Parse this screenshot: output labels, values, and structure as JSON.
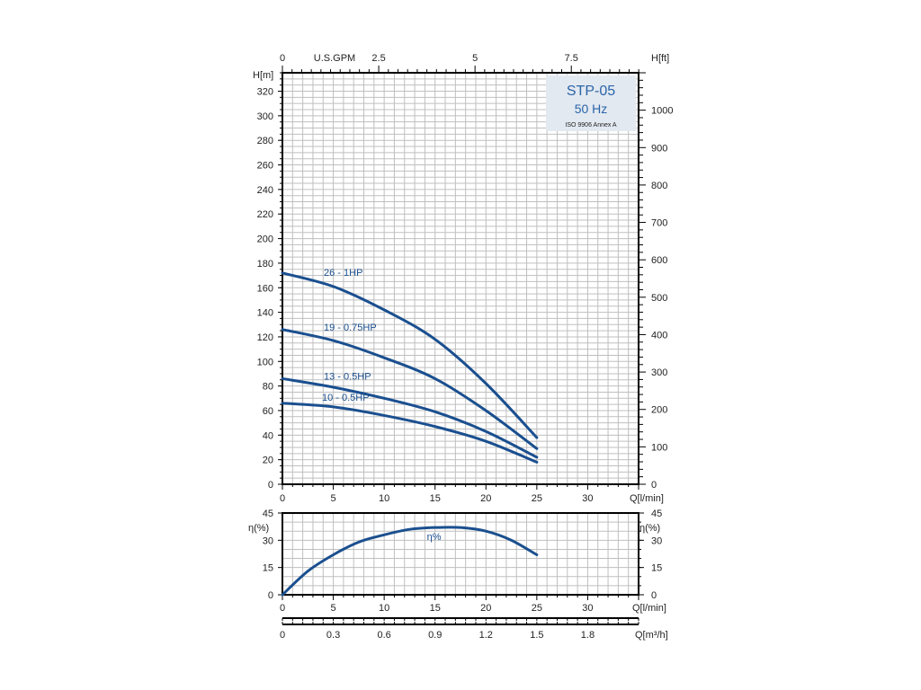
{
  "chart_data": [
    {
      "type": "line",
      "panel": "head",
      "title": "STP-05",
      "subtitle": "50 Hz",
      "note": "ISO 9906 Annex A",
      "xlabel": "Q[l/min]",
      "ylabel": "H[m]",
      "y2label": "H[ft]",
      "top_axis_label": "U.S.GPM",
      "xlim": [
        0,
        35
      ],
      "ylim": [
        0,
        335
      ],
      "y2lim": [
        0,
        1100
      ],
      "x_ticks": [
        "0",
        "5",
        "10",
        "15",
        "20",
        "25",
        "30"
      ],
      "y_ticks": [
        "0",
        "20",
        "40",
        "60",
        "80",
        "100",
        "120",
        "140",
        "160",
        "180",
        "200",
        "220",
        "240",
        "260",
        "280",
        "300",
        "320"
      ],
      "y2_ticks": [
        "0",
        "100",
        "200",
        "300",
        "400",
        "500",
        "600",
        "700",
        "800",
        "900",
        "1000"
      ],
      "top_ticks": [
        "0",
        "2.5",
        "5",
        "7.5"
      ],
      "grid": true,
      "series": [
        {
          "name": "26 - 1HP",
          "x": [
            0,
            5,
            10,
            15,
            20,
            25
          ],
          "y": [
            172,
            161,
            142,
            118,
            82,
            38
          ]
        },
        {
          "name": "19 - 0.75HP",
          "x": [
            0,
            5,
            10,
            15,
            20,
            25
          ],
          "y": [
            126,
            117,
            103,
            86,
            60,
            29
          ]
        },
        {
          "name": "13 - 0.5HP",
          "x": [
            0,
            5,
            10,
            15,
            20,
            25
          ],
          "y": [
            86,
            79,
            70,
            59,
            43,
            22
          ]
        },
        {
          "name": "10 - 0.5HP",
          "x": [
            0,
            5,
            10,
            15,
            20,
            25
          ],
          "y": [
            66,
            63,
            56,
            47,
            35,
            18
          ]
        }
      ]
    },
    {
      "type": "line",
      "panel": "efficiency",
      "xlabel": "Q[l/min]",
      "ylabel": "η(%)",
      "y2label": "η(%)",
      "xlim": [
        0,
        35
      ],
      "ylim": [
        0,
        45
      ],
      "x_ticks": [
        "0",
        "5",
        "10",
        "15",
        "20",
        "25",
        "30"
      ],
      "y_ticks": [
        "0",
        "15",
        "30",
        "45"
      ],
      "grid": true,
      "series": [
        {
          "name": "η%",
          "x": [
            0,
            2.5,
            5,
            7.5,
            10,
            12.5,
            15,
            17.5,
            20,
            22.5,
            25
          ],
          "y": [
            0,
            13,
            22,
            29,
            33,
            36,
            37,
            37,
            35,
            30,
            22
          ]
        }
      ]
    },
    {
      "type": "axis",
      "panel": "flow-m3h",
      "xlabel": "Q[m³/h]",
      "xlim": [
        0,
        2.1
      ],
      "x_ticks": [
        "0",
        "0.3",
        "0.6",
        "0.9",
        "1.2",
        "1.5",
        "1.8"
      ]
    }
  ],
  "colors": {
    "curve": "#1a4f8f",
    "curve_label": "#1a4f8f",
    "grid": "#bfbfbf",
    "title_box": "#e3e9f1",
    "title_text": "#2a64a8"
  }
}
